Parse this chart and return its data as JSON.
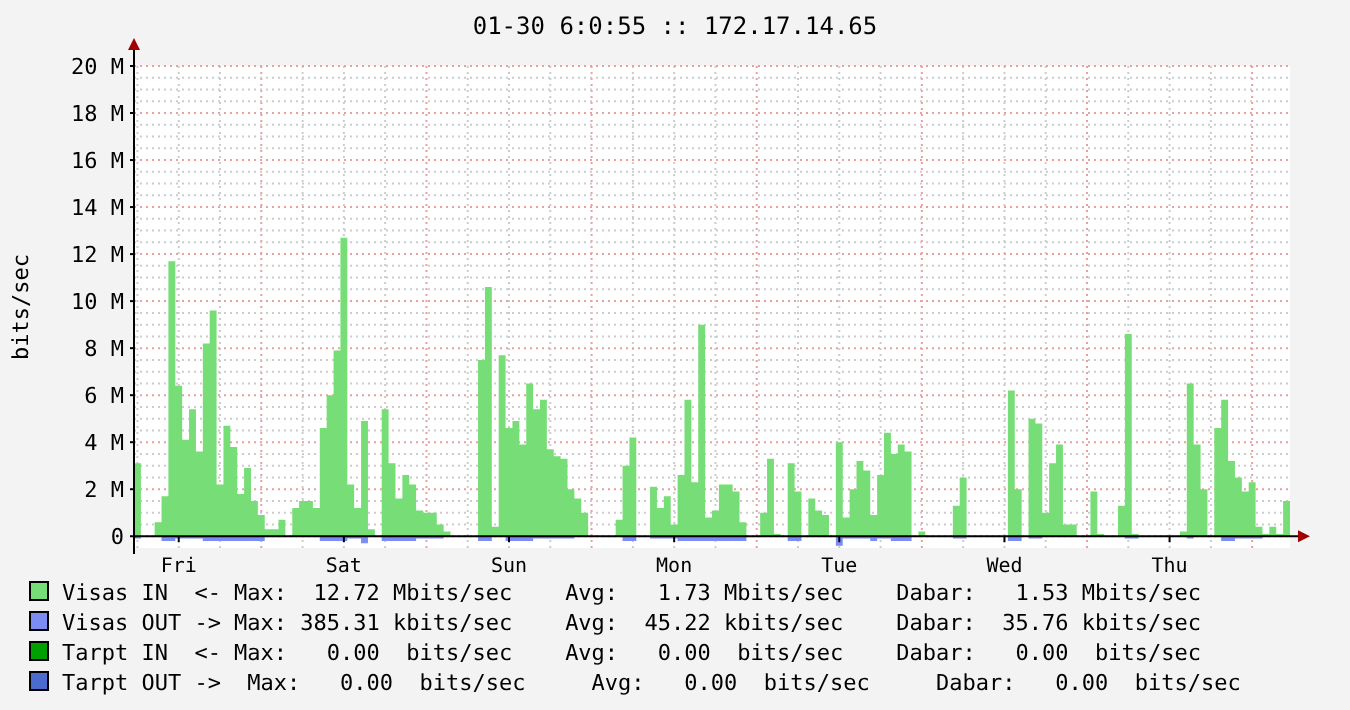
{
  "chart_data": {
    "type": "area",
    "title": "01-30 6:0:55 :: 172.17.14.65",
    "ylabel": "bits/sec",
    "categories": [
      null,
      null,
      null,
      null,
      null,
      null,
      "Fri",
      null,
      null,
      null,
      null,
      null,
      null,
      null,
      null,
      null,
      null,
      null,
      null,
      null,
      null,
      null,
      null,
      null,
      null,
      null,
      null,
      null,
      null,
      null,
      "Sat",
      null,
      null,
      null,
      null,
      null,
      null,
      null,
      null,
      null,
      null,
      null,
      null,
      null,
      null,
      null,
      null,
      null,
      null,
      null,
      null,
      null,
      null,
      null,
      "Sun",
      null,
      null,
      null,
      null,
      null,
      null,
      null,
      null,
      null,
      null,
      null,
      null,
      null,
      null,
      null,
      null,
      null,
      null,
      null,
      null,
      null,
      null,
      null,
      "Mon",
      null,
      null,
      null,
      null,
      null,
      null,
      null,
      null,
      null,
      null,
      null,
      null,
      null,
      null,
      null,
      null,
      null,
      null,
      null,
      null,
      null,
      null,
      null,
      "Tue",
      null,
      null,
      null,
      null,
      null,
      null,
      null,
      null,
      null,
      null,
      null,
      null,
      null,
      null,
      null,
      null,
      null,
      null,
      null,
      null,
      null,
      null,
      null,
      "Wed",
      null,
      null,
      null,
      null,
      null,
      null,
      null,
      null,
      null,
      null,
      null,
      null,
      null,
      null,
      null,
      null,
      null,
      null,
      null,
      null,
      null,
      null,
      null,
      "Thu",
      null,
      null,
      null,
      null,
      null,
      null,
      null,
      null,
      null,
      null,
      null,
      null,
      null,
      null,
      null,
      null,
      null
    ],
    "ylim": [
      -0.5,
      20
    ],
    "yticks": [
      0,
      {
        "value": 2,
        "label": "2 M"
      },
      {
        "value": 4,
        "label": "4 M"
      },
      {
        "value": 6,
        "label": "6 M"
      },
      {
        "value": 8,
        "label": "8 M"
      },
      {
        "value": 10,
        "label": "10 M"
      },
      {
        "value": 12,
        "label": "12 M"
      },
      {
        "value": 14,
        "label": "14 M"
      },
      {
        "value": 16,
        "label": "16 M"
      },
      {
        "value": 18,
        "label": "18 M"
      },
      {
        "value": 20,
        "label": "20 M"
      }
    ],
    "grid": true,
    "legend": "bottom",
    "series": [
      {
        "name": "Visas IN  <-",
        "color": "#77dd77",
        "values": [
          3.1,
          0,
          0,
          0.6,
          1.7,
          11.7,
          6.4,
          4.1,
          5.4,
          3.6,
          8.2,
          9.6,
          2.2,
          4.7,
          3.8,
          1.8,
          2.9,
          1.5,
          0.9,
          0.3,
          0.3,
          0.7,
          0,
          1.2,
          1.5,
          1.5,
          1.2,
          4.6,
          6.0,
          7.9,
          12.7,
          2.2,
          1.2,
          4.9,
          0.3,
          0,
          5.4,
          3.1,
          1.6,
          2.6,
          2.2,
          1.1,
          1.0,
          1.0,
          0.5,
          0.2,
          0,
          0,
          0,
          0,
          7.5,
          10.6,
          0.4,
          7.7,
          4.6,
          4.9,
          3.9,
          6.5,
          5.4,
          5.8,
          3.7,
          3.4,
          3.3,
          2.0,
          1.6,
          1.0,
          0,
          0,
          0,
          0,
          0.7,
          3.0,
          4.2,
          0,
          0,
          2.1,
          1.2,
          1.7,
          0.5,
          2.6,
          5.8,
          2.3,
          9.0,
          0.8,
          1.1,
          2.2,
          2.2,
          1.9,
          0.6,
          0,
          0,
          1.0,
          3.3,
          0.1,
          0,
          3.1,
          1.9,
          0,
          1.6,
          1.1,
          0.9,
          0,
          4.0,
          0.8,
          2.0,
          3.2,
          2.8,
          0.9,
          2.6,
          4.4,
          3.5,
          3.9,
          3.6,
          0,
          0.2,
          0,
          0,
          0,
          0,
          1.3,
          2.5,
          0,
          0,
          0,
          0,
          0,
          0,
          6.2,
          2.0,
          0,
          5.0,
          4.8,
          1.0,
          3.1,
          3.9,
          0.5,
          0.5,
          0,
          0,
          1.9,
          0.1,
          0,
          0,
          1.3,
          8.6,
          0.1,
          0,
          0,
          0,
          0,
          0,
          0,
          0.2,
          6.5,
          3.9,
          2.0,
          0,
          4.6,
          5.8,
          3.2,
          2.5,
          1.9,
          2.3,
          0.4,
          0.1,
          0.4,
          0.1,
          1.5
        ]
      },
      {
        "name": "Visas OUT ->",
        "color": "#7b8cf5",
        "values": [
          -0.1,
          0,
          0,
          0,
          -0.2,
          -0.2,
          -0.1,
          -0.1,
          -0.1,
          -0.1,
          -0.2,
          -0.2,
          -0.2,
          -0.2,
          -0.2,
          -0.2,
          -0.2,
          -0.2,
          -0.2,
          0,
          0,
          0,
          0,
          0,
          0,
          0,
          0,
          -0.2,
          -0.2,
          -0.2,
          -0.2,
          -0.1,
          -0.1,
          -0.3,
          0,
          0,
          -0.2,
          -0.2,
          -0.2,
          -0.2,
          -0.2,
          -0.1,
          -0.1,
          -0.1,
          -0.1,
          0,
          0,
          0,
          0,
          0,
          -0.2,
          -0.2,
          0,
          0,
          -0.2,
          -0.2,
          -0.2,
          -0.2,
          -0.1,
          -0.1,
          -0.1,
          -0.1,
          -0.1,
          -0.1,
          0,
          0,
          0,
          0,
          0,
          0,
          0,
          -0.2,
          -0.2,
          0,
          0,
          -0.1,
          -0.1,
          -0.1,
          -0.1,
          -0.2,
          -0.2,
          -0.2,
          -0.2,
          -0.2,
          -0.2,
          -0.2,
          -0.2,
          -0.2,
          -0.2,
          0,
          0,
          0,
          0,
          0,
          0,
          -0.2,
          -0.2,
          0,
          0,
          0,
          0,
          0,
          -0.4,
          -0.1,
          -0.1,
          -0.1,
          -0.1,
          -0.2,
          -0.1,
          -0.1,
          -0.2,
          -0.2,
          -0.2,
          0,
          0,
          0,
          0,
          0,
          0,
          -0.1,
          -0.1,
          0,
          0,
          0,
          0,
          0,
          0,
          -0.2,
          -0.2,
          0,
          -0.1,
          -0.1,
          0,
          0,
          0,
          0,
          0,
          0,
          0,
          0,
          0,
          0,
          0,
          0,
          -0.1,
          -0.1,
          0,
          0,
          0,
          0,
          0,
          0,
          0,
          -0.1,
          0,
          0,
          0,
          0,
          -0.2,
          -0.2,
          -0.1,
          -0.1,
          -0.1,
          -0.1,
          0,
          0,
          0,
          0
        ]
      },
      {
        "name": "Tarpt IN  <-",
        "color": "#00a000",
        "values": [
          null,
          null,
          null,
          null,
          null,
          null,
          null,
          null,
          null,
          null,
          null,
          null,
          null,
          null,
          null,
          null,
          null,
          null,
          null,
          null,
          null,
          null,
          null,
          null,
          null,
          null,
          null,
          null,
          null,
          null,
          null,
          null,
          null,
          null,
          null,
          null,
          null,
          null,
          null,
          null,
          null,
          null,
          null,
          null,
          null,
          null,
          null,
          null,
          null,
          null,
          null,
          null,
          null,
          null,
          null,
          null,
          null,
          null,
          null,
          null,
          null,
          null,
          null,
          null,
          null,
          null,
          null,
          null,
          null,
          null,
          null,
          null,
          null,
          null,
          null,
          null,
          null,
          null,
          null,
          null,
          null,
          null,
          null,
          null,
          null,
          null,
          null,
          null,
          null,
          null,
          null,
          null,
          null,
          null,
          null,
          null,
          null,
          null,
          null,
          null,
          null,
          null,
          null,
          null,
          null,
          null,
          null,
          null,
          null,
          null,
          null,
          null,
          null,
          null,
          null,
          null,
          null,
          null,
          null,
          null,
          null,
          null,
          null,
          null,
          null,
          null,
          null,
          null,
          null,
          null,
          null,
          null,
          null,
          null,
          null,
          null,
          null,
          null,
          null,
          null,
          null,
          null,
          null,
          null,
          null,
          null,
          null,
          null,
          null,
          null,
          null,
          null,
          null,
          null,
          null,
          null,
          null,
          null,
          null,
          null,
          null,
          null,
          null,
          null,
          null,
          null,
          null,
          null
        ]
      },
      {
        "name": "Tarpt OUT ->",
        "color": "#4b6bcf",
        "values": [
          null,
          null,
          null,
          null,
          null,
          null,
          null,
          null,
          null,
          null,
          null,
          null,
          null,
          null,
          null,
          null,
          null,
          null,
          null,
          null,
          null,
          null,
          null,
          null,
          null,
          null,
          null,
          null,
          null,
          null,
          null,
          null,
          null,
          null,
          null,
          null,
          null,
          null,
          null,
          null,
          null,
          null,
          null,
          null,
          null,
          null,
          null,
          null,
          null,
          null,
          null,
          null,
          null,
          null,
          null,
          null,
          null,
          null,
          null,
          null,
          null,
          null,
          null,
          null,
          null,
          null,
          null,
          null,
          null,
          null,
          null,
          null,
          null,
          null,
          null,
          null,
          null,
          null,
          null,
          null,
          null,
          null,
          null,
          null,
          null,
          null,
          null,
          null,
          null,
          null,
          null,
          null,
          null,
          null,
          null,
          null,
          null,
          null,
          null,
          null,
          null,
          null,
          null,
          null,
          null,
          null,
          null,
          null,
          null,
          null,
          null,
          null,
          null,
          null,
          null,
          null,
          null,
          null,
          null,
          null,
          null,
          null,
          null,
          null,
          null,
          null,
          null,
          null,
          null,
          null,
          null,
          null,
          null,
          null,
          null,
          null,
          null,
          null,
          null,
          null,
          null,
          null,
          null,
          null,
          null,
          null,
          null,
          null,
          null,
          null,
          null,
          null,
          null,
          null,
          null,
          null,
          null,
          null,
          null,
          null,
          null,
          null,
          null,
          null,
          null,
          null,
          null,
          null
        ]
      }
    ],
    "annotations": [
      "Max:  12.72 Mbits/sec    Avg:   1.73 Mbits/sec    Dabar:   1.53 Mbits/sec",
      "Max: 385.31 kbits/sec    Avg:  45.22 kbits/sec    Dabar:  35.76 kbits/sec",
      "Max:   0.00  bits/sec    Avg:   0.00  bits/sec    Dabar:   0.00  bits/sec",
      " Max:   0.00  bits/sec     Avg:   0.00  bits/sec     Dabar:   0.00  bits/sec"
    ]
  }
}
